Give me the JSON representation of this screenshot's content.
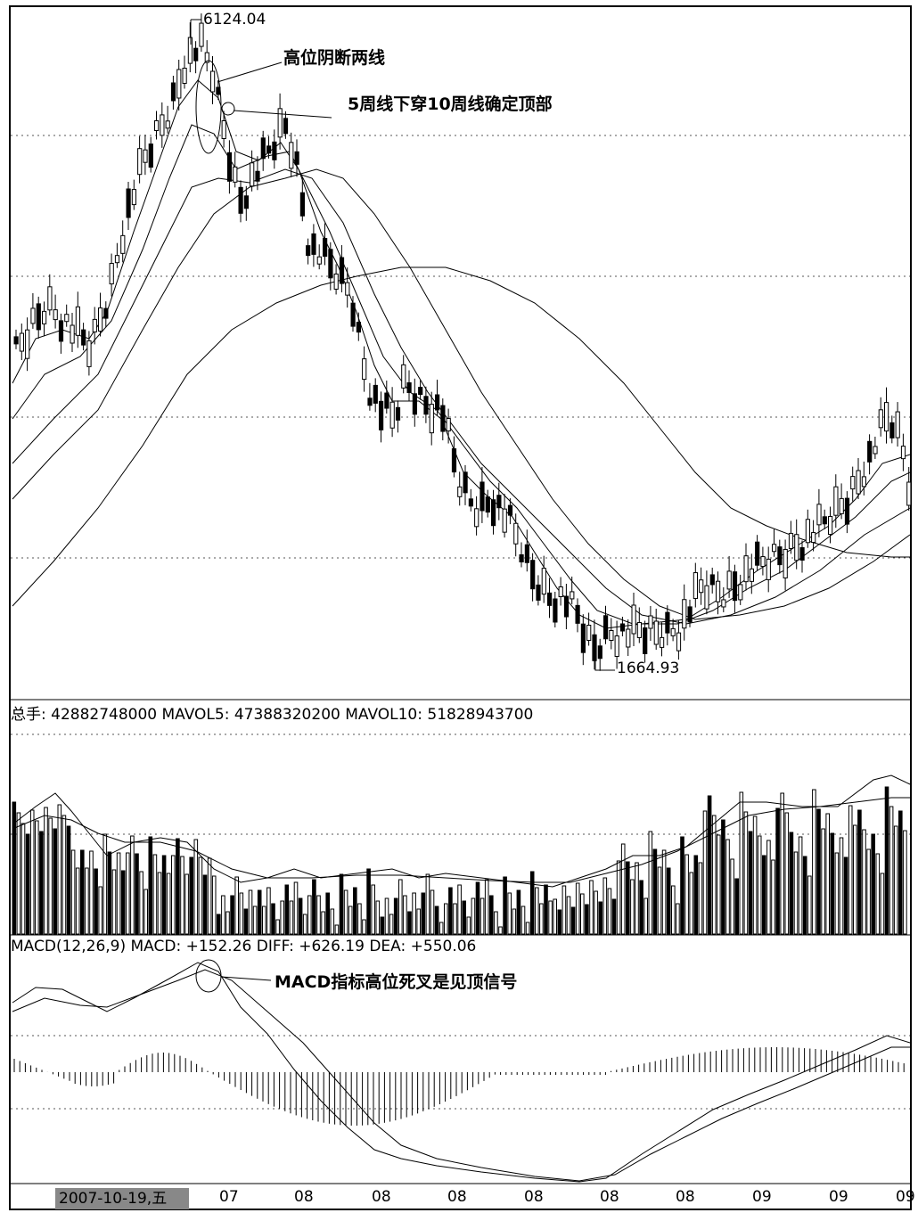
{
  "chart_data": [
    {
      "type": "candlestick",
      "annotations": {
        "high_label": "6124.04",
        "low_label": "1664.93",
        "note1": "高位阴断两线",
        "note2": "5周线下穿10周线确定顶部"
      },
      "price_high": 6124.04,
      "price_low": 1664.93,
      "grid": true,
      "moving_averages": 5
    },
    {
      "type": "bar",
      "header": {
        "label": "总手: 42882748000 MAVOL5: 47388320200 MAVOL10: 51828943700"
      },
      "volume": 42882748000,
      "mavol5": 47388320200,
      "mavol10": 51828943700,
      "grid": true
    },
    {
      "type": "line",
      "header": {
        "label": "MACD(12,26,9) MACD: +152.26 DIFF: +626.19 DEA: +550.06"
      },
      "annotations": {
        "note": "MACD指标高位死叉是见顶信号"
      },
      "macd": 152.26,
      "diff": 626.19,
      "dea": 550.06
    }
  ],
  "x_axis": {
    "selected_date": "2007-10-19,五",
    "ticks": [
      "07",
      "08",
      "08",
      "08",
      "08",
      "08",
      "08",
      "09",
      "09",
      "09",
      "0"
    ]
  }
}
